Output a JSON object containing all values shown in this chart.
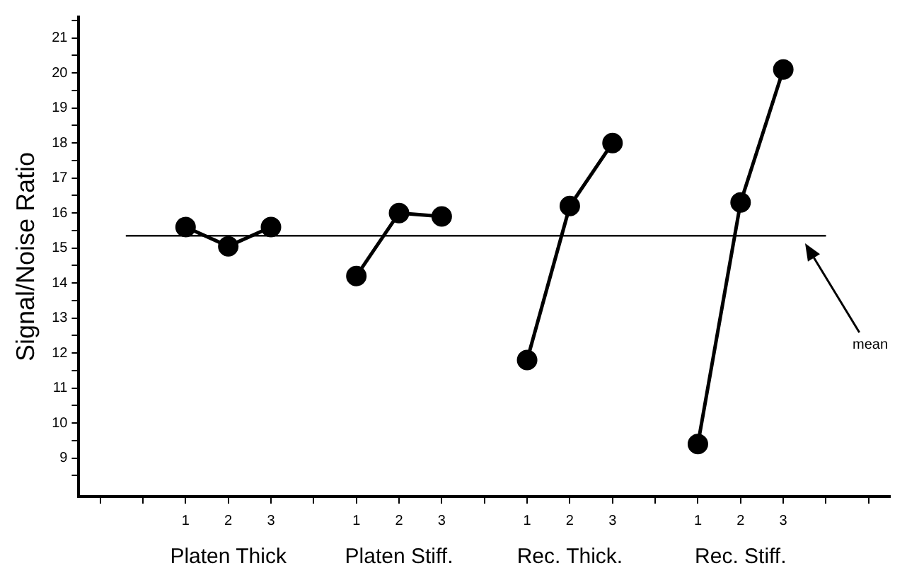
{
  "chart_data": {
    "type": "line",
    "ylabel": "Signal/Noise Ratio",
    "categories": [
      null,
      null,
      "1",
      "2",
      "3",
      null,
      "1",
      "2",
      "3",
      null,
      "1",
      "2",
      "3",
      null,
      "1",
      "2",
      "3",
      null,
      null
    ],
    "series": [
      {
        "color": "#000000",
        "values": [
          null,
          null,
          15.6,
          15.05,
          15.6,
          null,
          null,
          null,
          null,
          null,
          null,
          null,
          null,
          null,
          null,
          null,
          null,
          null,
          null
        ]
      },
      {
        "color": "#000000",
        "values": [
          null,
          null,
          null,
          null,
          null,
          null,
          14.2,
          16.0,
          15.9,
          null,
          null,
          null,
          null,
          null,
          null,
          null,
          null,
          null,
          null
        ]
      },
      {
        "color": "#000000",
        "values": [
          null,
          null,
          null,
          null,
          null,
          null,
          null,
          null,
          null,
          null,
          11.8,
          16.2,
          18.0,
          null,
          null,
          null,
          null,
          null,
          null
        ]
      },
      {
        "color": "#000000",
        "values": [
          null,
          null,
          null,
          null,
          null,
          null,
          null,
          null,
          null,
          null,
          null,
          null,
          null,
          null,
          9.4,
          16.3,
          20.1,
          null,
          null
        ]
      }
    ],
    "ylim": [
      7.9,
      21.6
    ],
    "yticks": [
      {
        "value": 8.5,
        "label": null
      },
      9,
      {
        "value": 9.5,
        "label": null
      },
      10,
      {
        "value": 10.5,
        "label": null
      },
      11,
      {
        "value": 11.5,
        "label": null
      },
      12,
      {
        "value": 12.5,
        "label": null
      },
      13,
      {
        "value": 13.5,
        "label": null
      },
      14,
      {
        "value": 14.5,
        "label": null
      },
      15,
      {
        "value": 15.5,
        "label": null
      },
      16,
      {
        "value": 16.5,
        "label": null
      },
      17,
      {
        "value": 17.5,
        "label": null
      },
      18,
      {
        "value": 18.5,
        "label": null
      },
      19,
      {
        "value": 19.5,
        "label": null
      },
      20,
      {
        "value": 20.5,
        "label": null
      },
      21,
      {
        "value": 21.5,
        "label": null
      }
    ],
    "ref_lines": [
      {
        "axis": "y",
        "value": 15.35,
        "label": "mean",
        "color": "#000000"
      }
    ],
    "annotations": [
      "Platen Thick",
      "Platen Stiff.",
      "Rec. Thick.",
      "Rec. Stiff."
    ],
    "marker": "circle",
    "line_style": "solid",
    "grid": false,
    "legend": false
  }
}
